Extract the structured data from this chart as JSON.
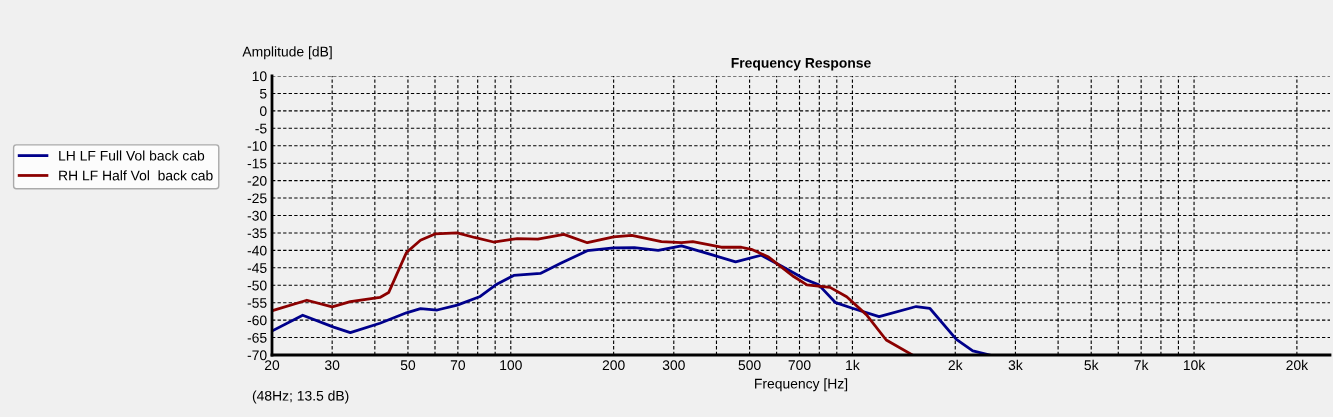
{
  "chart_data": {
    "type": "line",
    "title": "Frequency Response",
    "xlabel": "Frequency [Hz]",
    "ylabel": "Amplitude [dB]",
    "log": "x",
    "grid": true,
    "legend": "left",
    "line_style": "solid",
    "marker": "none",
    "xlim": [
      20,
      25000
    ],
    "ylim": [
      -70,
      10
    ],
    "xticks": [
      20,
      30,
      {
        "value": 40,
        "label": null
      },
      50,
      {
        "value": 60,
        "label": null
      },
      70,
      {
        "value": 80,
        "label": null
      },
      {
        "value": 90,
        "label": null
      },
      100,
      200,
      300,
      {
        "value": 400,
        "label": null
      },
      500,
      {
        "value": 600,
        "label": null
      },
      700,
      {
        "value": 800,
        "label": null
      },
      {
        "value": 900,
        "label": null
      },
      {
        "value": 1000,
        "label": "1k"
      },
      {
        "value": 2000,
        "label": "2k"
      },
      {
        "value": 3000,
        "label": "3k"
      },
      {
        "value": 4000,
        "label": null
      },
      {
        "value": 5000,
        "label": "5k"
      },
      {
        "value": 6000,
        "label": null
      },
      {
        "value": 7000,
        "label": "7k"
      },
      {
        "value": 8000,
        "label": null
      },
      {
        "value": 9000,
        "label": null
      },
      {
        "value": 10000,
        "label": "10k"
      },
      {
        "value": 20000,
        "label": "20k"
      }
    ],
    "yticks": [
      -70,
      -65,
      -60,
      -55,
      -50,
      -45,
      -40,
      -35,
      -30,
      -25,
      -20,
      -15,
      -10,
      -5,
      0,
      5,
      10
    ],
    "annotations": [
      "(48Hz; 13.5 dB)"
    ],
    "series": [
      {
        "name": "LH LF Full Vol back cab",
        "color": "#00008b",
        "x": [
          20,
          24.6,
          30.3,
          33.9,
          41.4,
          49.5,
          54.4,
          60.9,
          69.7,
          81,
          91,
          102,
          122,
          140,
          167.5,
          200,
          230,
          270,
          316,
          389,
          455,
          541,
          625,
          727,
          797,
          893,
          1000,
          1197,
          1537,
          1684,
          2015,
          2251,
          2522
        ],
        "values": [
          -63.1,
          -58.6,
          -62,
          -63.6,
          -60.9,
          -57.9,
          -56.7,
          -57.1,
          -55.7,
          -53.3,
          -49.7,
          -47.2,
          -46.6,
          -43.7,
          -40.1,
          -39.3,
          -39.2,
          -40,
          -38.7,
          -41.3,
          -43.3,
          -41.4,
          -44.7,
          -48.3,
          -49.9,
          -55,
          -56.6,
          -59,
          -56.1,
          -56.6,
          -65.5,
          -68.8,
          -70
        ]
      },
      {
        "name": "RH LF Half Vol  back cab",
        "color": "#8b0000",
        "x": [
          20,
          25.3,
          30,
          33.9,
          41.4,
          43.9,
          49.5,
          54.4,
          60,
          69.7,
          78.3,
          89,
          104.5,
          120,
          143,
          167.5,
          200,
          226,
          276,
          316,
          341,
          413,
          473,
          506,
          566,
          673,
          736,
          860,
          962,
          1100,
          1256,
          1499
        ],
        "values": [
          -57.3,
          -54.3,
          -56.2,
          -54.7,
          -53.5,
          -52.1,
          -40.6,
          -37.1,
          -35.3,
          -35,
          -36.3,
          -37.6,
          -36.6,
          -36.8,
          -35.4,
          -37.8,
          -36.1,
          -35.7,
          -37.5,
          -37.8,
          -37.5,
          -39.1,
          -39.1,
          -39.7,
          -41.8,
          -47.5,
          -49.9,
          -50.6,
          -53.3,
          -58.5,
          -65.7,
          -70
        ]
      }
    ]
  }
}
